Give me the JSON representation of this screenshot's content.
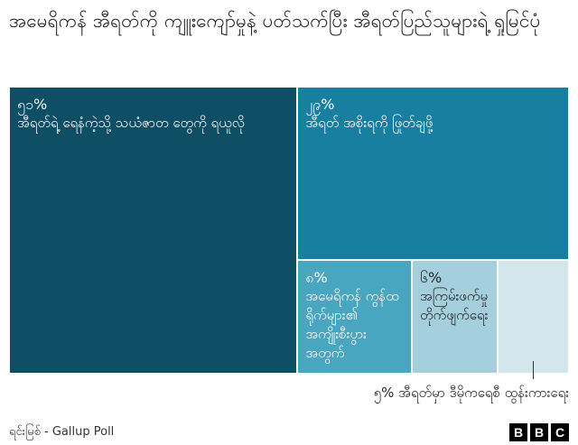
{
  "chart_data": {
    "type": "treemap",
    "title": "အမေရိကန် အီရတ်ကို ကျူးကျော်မှုနဲ့ ပတ်သက်ပြီး အီရတ်ပြည်သူများရဲ့ ရှုမြင်ပုံ",
    "categories": [
      "အီရတ်ရဲ့ ရေနံကဲ့သို့ သယံဇာတ တွေကို ရယူလို",
      "အီရတ် အစိုးရကို ဖြုတ်ချဖို့",
      "အမေရိကန် ကွန်ထရိုက်များ၏ အကျိုးစီးပွား အတွက်",
      "အကြမ်းဖက်မှု တိုက်ဖျက်ရေး",
      "အီရတ်မှာ ဒီမိုကရေစီ ထွန်းကားရေး"
    ],
    "values": [
      51,
      29,
      8,
      6,
      5
    ],
    "value_labels": [
      "၅၁%",
      "၂၉%",
      "၈%",
      "၆%",
      "၅%"
    ],
    "colors": [
      "#0e4f66",
      "#197fa0",
      "#49a6c1",
      "#a5cfdc",
      "#d2e6ec"
    ],
    "source": "ရင်းမြစ် - Gallup Poll",
    "logo": "BBC"
  }
}
